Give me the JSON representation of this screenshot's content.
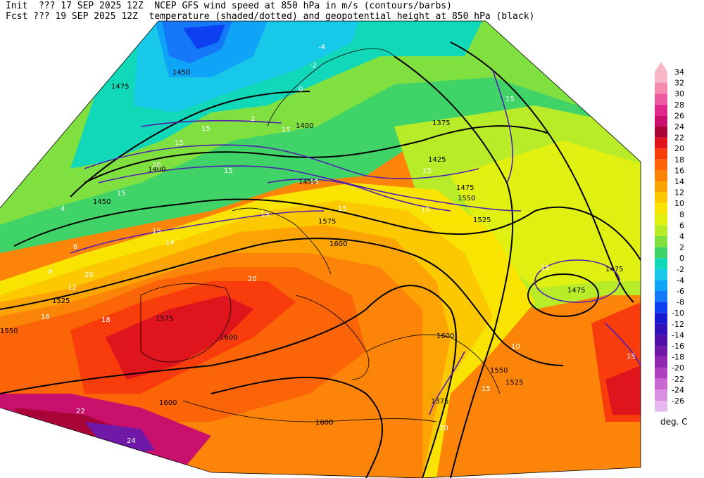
{
  "header": {
    "line1": "Init  ??? 17 SEP 2025 12Z  NCEP GFS wind speed at 850 hPa in m/s (contours/barbs)",
    "line2": "Fcst ??? 19 SEP 2025 12Z  temperature (shaded/dotted) and geopotential height at 850 hPa (black)"
  },
  "legend": {
    "unit": "deg. C",
    "levels": [
      {
        "label": "34",
        "color": "#f7b8c8"
      },
      {
        "label": "32",
        "color": "#f48cb0"
      },
      {
        "label": "30",
        "color": "#ee5aa0"
      },
      {
        "label": "28",
        "color": "#e0288c"
      },
      {
        "label": "26",
        "color": "#c8106c"
      },
      {
        "label": "24",
        "color": "#a80438"
      },
      {
        "label": "22",
        "color": "#e0141c"
      },
      {
        "label": "20",
        "color": "#f83c0c"
      },
      {
        "label": "18",
        "color": "#fc6408"
      },
      {
        "label": "16",
        "color": "#fc8408"
      },
      {
        "label": "14",
        "color": "#fca404"
      },
      {
        "label": "12",
        "color": "#fcc800"
      },
      {
        "label": "10",
        "color": "#f8e400"
      },
      {
        "label": "8",
        "color": "#e0f010"
      },
      {
        "label": "6",
        "color": "#b8ec28"
      },
      {
        "label": "4",
        "color": "#80e040"
      },
      {
        "label": "2",
        "color": "#40d468"
      },
      {
        "label": "0",
        "color": "#10d8b8"
      },
      {
        "label": "-2",
        "color": "#18c8e8"
      },
      {
        "label": "-4",
        "color": "#10a4f8"
      },
      {
        "label": "-6",
        "color": "#1478f8"
      },
      {
        "label": "-8",
        "color": "#0c40f0"
      },
      {
        "label": "-10",
        "color": "#1818d0"
      },
      {
        "label": "-12",
        "color": "#3010b8"
      },
      {
        "label": "-14",
        "color": "#5010a8"
      },
      {
        "label": "-16",
        "color": "#7018a8"
      },
      {
        "label": "-18",
        "color": "#9028b0"
      },
      {
        "label": "-20",
        "color": "#b040c0"
      },
      {
        "label": "-22",
        "color": "#c868d0"
      },
      {
        "label": "-24",
        "color": "#d890e0"
      },
      {
        "label": "-26",
        "color": "#e8b8f0"
      }
    ]
  },
  "map": {
    "height_contour_labels": [
      "1475",
      "1450",
      "1400",
      "1375",
      "1425",
      "1475",
      "1450",
      "1525",
      "1550",
      "1575",
      "1600",
      "1600",
      "1600",
      "1525",
      "1550",
      "1475",
      "1475",
      "1600",
      "1575",
      "1525",
      "1600",
      "1550",
      "1375",
      "1400",
      "1450"
    ],
    "temp_labels": [
      "-2",
      "-4",
      "0",
      "2",
      "4",
      "6",
      "8",
      "10",
      "12",
      "14",
      "16",
      "18",
      "20",
      "22",
      "24"
    ],
    "wind_labels": [
      "15",
      "15",
      "15",
      "20",
      "15",
      "15",
      "15",
      "15",
      "15",
      "20",
      "15",
      "15",
      "15",
      "15",
      "15",
      "15",
      "15",
      "20"
    ]
  }
}
